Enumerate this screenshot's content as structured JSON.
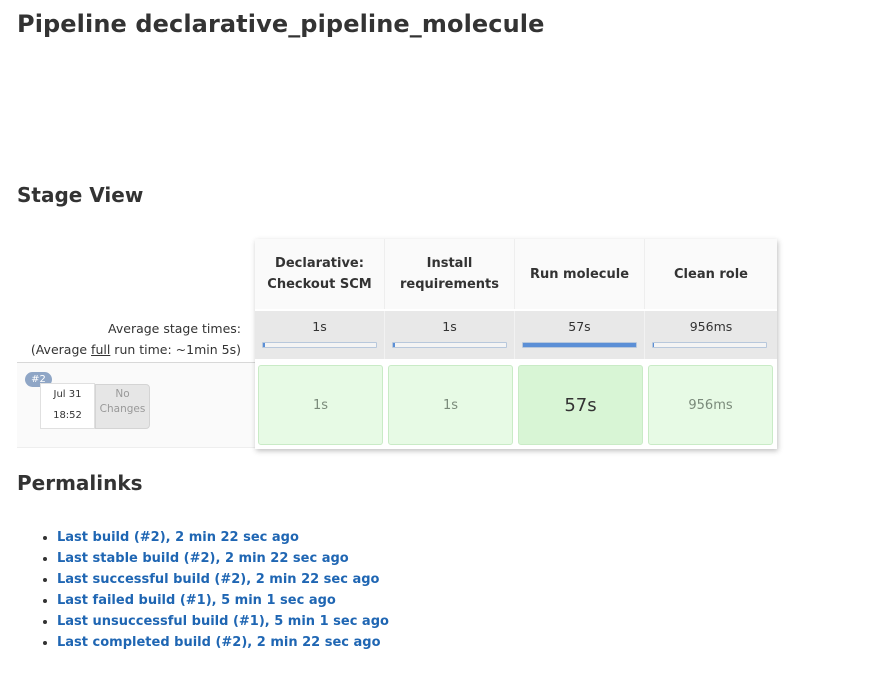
{
  "page_title": "Pipeline declarative_pipeline_molecule",
  "stage_view": {
    "title": "Stage View",
    "avg_label_line1": "Average stage times:",
    "avg_label_prefix": "(Average ",
    "avg_label_full": "full",
    "avg_label_suffix": " run time: ~1min 5s)",
    "stages": [
      {
        "name_line1": "Declarative:",
        "name_line2": "Checkout SCM",
        "avg": "1s",
        "avg_fraction": 0.02,
        "run": "1s"
      },
      {
        "name_line1": "Install",
        "name_line2": "requirements",
        "avg": "1s",
        "avg_fraction": 0.02,
        "run": "1s"
      },
      {
        "name_line1": "Run molecule",
        "name_line2": "",
        "avg": "57s",
        "avg_fraction": 1.0,
        "run": "57s"
      },
      {
        "name_line1": "Clean role",
        "name_line2": "",
        "avg": "956ms",
        "avg_fraction": 0.01,
        "run": "956ms"
      }
    ],
    "build": {
      "number": "#2",
      "date": "Jul 31",
      "time": "18:52",
      "changes_line1": "No",
      "changes_line2": "Changes"
    },
    "colors": {
      "success_fill": "#e7fae5",
      "success_highlight": "#d8f5d5",
      "avg_bar": "#5b8fd6"
    }
  },
  "permalinks": {
    "title": "Permalinks",
    "links": [
      "Last build (#2), 2 min 22 sec ago",
      "Last stable build (#2), 2 min 22 sec ago",
      "Last successful build (#2), 2 min 22 sec ago",
      "Last failed build (#1), 5 min 1 sec ago",
      "Last unsuccessful build (#1), 5 min 1 sec ago",
      "Last completed build (#2), 2 min 22 sec ago"
    ]
  }
}
